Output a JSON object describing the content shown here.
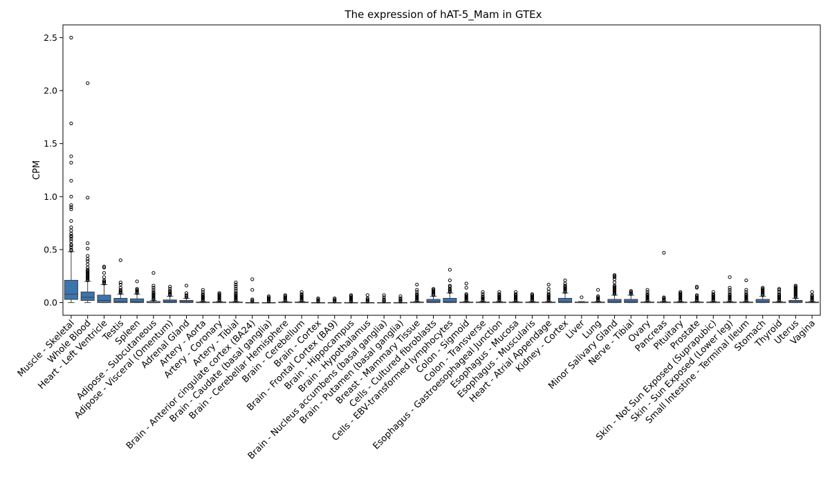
{
  "chart_data": {
    "type": "box",
    "title": "The expression of hAT-5_Mam in GTEx",
    "xlabel": "",
    "ylabel": "CPM",
    "ylim": [
      -0.12,
      2.62
    ],
    "yticks": [
      0.0,
      0.5,
      1.0,
      1.5,
      2.0,
      2.5
    ],
    "ytick_labels": [
      "0.0",
      "0.5",
      "1.0",
      "1.5",
      "2.0",
      "2.5"
    ],
    "grid": false,
    "color": "#3b75af",
    "categories": [
      {
        "name": "Muscle - Skeletal",
        "min": 0.0,
        "q1": 0.03,
        "median": 0.08,
        "q3": 0.21,
        "max": 0.48,
        "outliers": [
          0.49,
          0.5,
          0.52,
          0.54,
          0.55,
          0.58,
          0.6,
          0.62,
          0.63,
          0.65,
          0.68,
          0.71,
          0.77,
          0.88,
          0.9,
          0.92,
          1.0,
          1.15,
          1.32,
          1.38,
          1.69,
          2.5
        ]
      },
      {
        "name": "Whole Blood",
        "min": 0.0,
        "q1": 0.02,
        "median": 0.05,
        "q3": 0.1,
        "max": 0.2,
        "outliers": [
          0.21,
          0.22,
          0.23,
          0.24,
          0.25,
          0.26,
          0.27,
          0.28,
          0.29,
          0.3,
          0.31,
          0.33,
          0.36,
          0.39,
          0.41,
          0.44,
          0.51,
          0.56,
          0.99,
          2.07
        ]
      },
      {
        "name": "Heart - Left Ventricle",
        "min": 0.0,
        "q1": 0.0,
        "median": 0.02,
        "q3": 0.07,
        "max": 0.17,
        "outliers": [
          0.18,
          0.19,
          0.2,
          0.21,
          0.24,
          0.28,
          0.33,
          0.34
        ]
      },
      {
        "name": "Testis",
        "min": 0.0,
        "q1": 0.0,
        "median": 0.01,
        "q3": 0.04,
        "max": 0.08,
        "outliers": [
          0.09,
          0.1,
          0.11,
          0.12,
          0.14,
          0.17,
          0.19,
          0.4
        ]
      },
      {
        "name": "Spleen",
        "min": 0.0,
        "q1": 0.0,
        "median": 0.01,
        "q3": 0.035,
        "max": 0.08,
        "outliers": [
          0.09,
          0.1,
          0.11,
          0.12,
          0.13,
          0.2
        ]
      },
      {
        "name": "Adipose - Subcutaneous",
        "min": 0.0,
        "q1": 0.0,
        "median": 0.0,
        "q3": 0.01,
        "max": 0.02,
        "outliers": [
          0.03,
          0.04,
          0.05,
          0.06,
          0.07,
          0.08,
          0.09,
          0.1,
          0.12,
          0.14,
          0.16,
          0.28
        ]
      },
      {
        "name": "Adipose - Visceral (Omentum)",
        "min": 0.0,
        "q1": 0.0,
        "median": 0.01,
        "q3": 0.025,
        "max": 0.06,
        "outliers": [
          0.07,
          0.08,
          0.09,
          0.1,
          0.11,
          0.13,
          0.15
        ]
      },
      {
        "name": "Adrenal Gland",
        "min": 0.0,
        "q1": 0.0,
        "median": 0.01,
        "q3": 0.02,
        "max": 0.04,
        "outliers": [
          0.05,
          0.06,
          0.07,
          0.09,
          0.16
        ]
      },
      {
        "name": "Artery - Aorta",
        "min": 0.0,
        "q1": 0.0,
        "median": 0.0,
        "q3": 0.005,
        "max": 0.01,
        "outliers": [
          0.02,
          0.03,
          0.04,
          0.05,
          0.06,
          0.07,
          0.08,
          0.1,
          0.12
        ]
      },
      {
        "name": "Artery - Coronary",
        "min": 0.0,
        "q1": 0.0,
        "median": 0.0,
        "q3": 0.005,
        "max": 0.01,
        "outliers": [
          0.02,
          0.03,
          0.04,
          0.05,
          0.06,
          0.07,
          0.08,
          0.09
        ]
      },
      {
        "name": "Artery - Tibial",
        "min": 0.0,
        "q1": 0.0,
        "median": 0.0,
        "q3": 0.005,
        "max": 0.01,
        "outliers": [
          0.02,
          0.03,
          0.04,
          0.05,
          0.06,
          0.07,
          0.08,
          0.09,
          0.11,
          0.13,
          0.15,
          0.17,
          0.19
        ]
      },
      {
        "name": "Brain - Anterior cingulate cortex (BA24)",
        "min": 0.0,
        "q1": 0.0,
        "median": 0.0,
        "q3": 0.0,
        "max": 0.0,
        "outliers": [
          0.01,
          0.02,
          0.03,
          0.12,
          0.22
        ]
      },
      {
        "name": "Brain - Caudate (basal ganglia)",
        "min": 0.0,
        "q1": 0.0,
        "median": 0.0,
        "q3": 0.0,
        "max": 0.0,
        "outliers": [
          0.01,
          0.02,
          0.03,
          0.04,
          0.05,
          0.06
        ]
      },
      {
        "name": "Brain - Cerebellar Hemisphere",
        "min": 0.0,
        "q1": 0.0,
        "median": 0.0,
        "q3": 0.005,
        "max": 0.01,
        "outliers": [
          0.02,
          0.03,
          0.04,
          0.05,
          0.06,
          0.07
        ]
      },
      {
        "name": "Brain - Cerebellum",
        "min": 0.0,
        "q1": 0.0,
        "median": 0.0,
        "q3": 0.005,
        "max": 0.01,
        "outliers": [
          0.02,
          0.03,
          0.04,
          0.05,
          0.06,
          0.07,
          0.08,
          0.1
        ]
      },
      {
        "name": "Brain - Cortex",
        "min": 0.0,
        "q1": 0.0,
        "median": 0.0,
        "q3": 0.0,
        "max": 0.0,
        "outliers": [
          0.01,
          0.02,
          0.03,
          0.04
        ]
      },
      {
        "name": "Brain - Frontal Cortex (BA9)",
        "min": 0.0,
        "q1": 0.0,
        "median": 0.0,
        "q3": 0.0,
        "max": 0.0,
        "outliers": [
          0.01,
          0.02,
          0.03,
          0.04
        ]
      },
      {
        "name": "Brain - Hippocampus",
        "min": 0.0,
        "q1": 0.0,
        "median": 0.0,
        "q3": 0.0,
        "max": 0.0,
        "outliers": [
          0.01,
          0.02,
          0.03,
          0.04,
          0.05,
          0.06,
          0.07
        ]
      },
      {
        "name": "Brain - Hypothalamus",
        "min": 0.0,
        "q1": 0.0,
        "median": 0.0,
        "q3": 0.0,
        "max": 0.0,
        "outliers": [
          0.01,
          0.02,
          0.03,
          0.04,
          0.07
        ]
      },
      {
        "name": "Brain - Nucleus accumbens (basal ganglia)",
        "min": 0.0,
        "q1": 0.0,
        "median": 0.0,
        "q3": 0.0,
        "max": 0.0,
        "outliers": [
          0.01,
          0.02,
          0.03,
          0.05,
          0.07
        ]
      },
      {
        "name": "Brain - Putamen (basal ganglia)",
        "min": 0.0,
        "q1": 0.0,
        "median": 0.0,
        "q3": 0.0,
        "max": 0.0,
        "outliers": [
          0.01,
          0.02,
          0.03,
          0.04,
          0.06
        ]
      },
      {
        "name": "Breast - Mammary Tissue",
        "min": 0.0,
        "q1": 0.0,
        "median": 0.0,
        "q3": 0.005,
        "max": 0.01,
        "outliers": [
          0.02,
          0.03,
          0.04,
          0.05,
          0.06,
          0.07,
          0.08,
          0.1,
          0.12,
          0.17
        ]
      },
      {
        "name": "Cells - Cultured fibroblasts",
        "min": 0.0,
        "q1": 0.0,
        "median": 0.01,
        "q3": 0.03,
        "max": 0.06,
        "outliers": [
          0.07,
          0.08,
          0.09,
          0.1,
          0.11,
          0.12,
          0.13
        ]
      },
      {
        "name": "Cells - EBV-transformed lymphocytes",
        "min": 0.0,
        "q1": 0.0,
        "median": 0.01,
        "q3": 0.04,
        "max": 0.09,
        "outliers": [
          0.1,
          0.11,
          0.12,
          0.13,
          0.15,
          0.16,
          0.21,
          0.31
        ]
      },
      {
        "name": "Colon - Sigmoid",
        "min": 0.0,
        "q1": 0.0,
        "median": 0.0,
        "q3": 0.005,
        "max": 0.01,
        "outliers": [
          0.02,
          0.03,
          0.04,
          0.05,
          0.06,
          0.07,
          0.08,
          0.14,
          0.18
        ]
      },
      {
        "name": "Colon - Transverse",
        "min": 0.0,
        "q1": 0.0,
        "median": 0.0,
        "q3": 0.005,
        "max": 0.01,
        "outliers": [
          0.02,
          0.03,
          0.04,
          0.05,
          0.06,
          0.08,
          0.1
        ]
      },
      {
        "name": "Esophagus - Gastroesophageal Junction",
        "min": 0.0,
        "q1": 0.0,
        "median": 0.0,
        "q3": 0.005,
        "max": 0.01,
        "outliers": [
          0.02,
          0.03,
          0.04,
          0.05,
          0.06,
          0.07,
          0.08,
          0.1
        ]
      },
      {
        "name": "Esophagus - Mucosa",
        "min": 0.0,
        "q1": 0.0,
        "median": 0.0,
        "q3": 0.005,
        "max": 0.01,
        "outliers": [
          0.02,
          0.03,
          0.04,
          0.05,
          0.06,
          0.07,
          0.08,
          0.1
        ]
      },
      {
        "name": "Esophagus - Muscularis",
        "min": 0.0,
        "q1": 0.0,
        "median": 0.0,
        "q3": 0.005,
        "max": 0.01,
        "outliers": [
          0.02,
          0.03,
          0.04,
          0.05,
          0.06,
          0.07,
          0.08
        ]
      },
      {
        "name": "Heart - Atrial Appendage",
        "min": 0.0,
        "q1": 0.0,
        "median": 0.0,
        "q3": 0.005,
        "max": 0.01,
        "outliers": [
          0.02,
          0.03,
          0.04,
          0.05,
          0.06,
          0.07,
          0.08,
          0.1,
          0.13,
          0.17
        ]
      },
      {
        "name": "Kidney - Cortex",
        "min": 0.0,
        "q1": 0.0,
        "median": 0.01,
        "q3": 0.04,
        "max": 0.09,
        "outliers": [
          0.1,
          0.11,
          0.12,
          0.13,
          0.14,
          0.15,
          0.16,
          0.18,
          0.21
        ]
      },
      {
        "name": "Liver",
        "min": 0.0,
        "q1": 0.0,
        "median": 0.0,
        "q3": 0.005,
        "max": 0.01,
        "outliers": [
          0.05
        ]
      },
      {
        "name": "Lung",
        "min": 0.0,
        "q1": 0.0,
        "median": 0.0,
        "q3": 0.005,
        "max": 0.01,
        "outliers": [
          0.02,
          0.03,
          0.04,
          0.05,
          0.06,
          0.12
        ]
      },
      {
        "name": "Minor Salivary Gland",
        "min": 0.0,
        "q1": 0.0,
        "median": 0.01,
        "q3": 0.03,
        "max": 0.07,
        "outliers": [
          0.08,
          0.09,
          0.1,
          0.11,
          0.12,
          0.13,
          0.14,
          0.15,
          0.16,
          0.19,
          0.22,
          0.24,
          0.25,
          0.26
        ]
      },
      {
        "name": "Nerve - Tibial",
        "min": 0.0,
        "q1": 0.0,
        "median": 0.01,
        "q3": 0.03,
        "max": 0.07,
        "outliers": [
          0.08,
          0.09,
          0.1,
          0.11
        ]
      },
      {
        "name": "Ovary",
        "min": 0.0,
        "q1": 0.0,
        "median": 0.0,
        "q3": 0.005,
        "max": 0.01,
        "outliers": [
          0.02,
          0.03,
          0.04,
          0.05,
          0.06,
          0.07,
          0.08,
          0.1,
          0.12
        ]
      },
      {
        "name": "Pancreas",
        "min": 0.0,
        "q1": 0.0,
        "median": 0.0,
        "q3": 0.005,
        "max": 0.01,
        "outliers": [
          0.02,
          0.03,
          0.04,
          0.05,
          0.47
        ]
      },
      {
        "name": "Pituitary",
        "min": 0.0,
        "q1": 0.0,
        "median": 0.0,
        "q3": 0.005,
        "max": 0.01,
        "outliers": [
          0.02,
          0.03,
          0.04,
          0.05,
          0.06,
          0.07,
          0.08,
          0.09,
          0.1
        ]
      },
      {
        "name": "Prostate",
        "min": 0.0,
        "q1": 0.0,
        "median": 0.0,
        "q3": 0.005,
        "max": 0.01,
        "outliers": [
          0.02,
          0.03,
          0.04,
          0.05,
          0.06,
          0.07,
          0.14,
          0.15
        ]
      },
      {
        "name": "Skin - Not Sun Exposed (Suprapubic)",
        "min": 0.0,
        "q1": 0.0,
        "median": 0.0,
        "q3": 0.005,
        "max": 0.01,
        "outliers": [
          0.02,
          0.03,
          0.04,
          0.05,
          0.06,
          0.07,
          0.08,
          0.1
        ]
      },
      {
        "name": "Skin - Sun Exposed (Lower leg)",
        "min": 0.0,
        "q1": 0.0,
        "median": 0.0,
        "q3": 0.005,
        "max": 0.01,
        "outliers": [
          0.02,
          0.03,
          0.04,
          0.05,
          0.06,
          0.07,
          0.08,
          0.1,
          0.12,
          0.14,
          0.24
        ]
      },
      {
        "name": "Small Intestine - Terminal Ileum",
        "min": 0.0,
        "q1": 0.0,
        "median": 0.0,
        "q3": 0.005,
        "max": 0.01,
        "outliers": [
          0.02,
          0.03,
          0.04,
          0.05,
          0.06,
          0.07,
          0.08,
          0.1,
          0.12,
          0.21
        ]
      },
      {
        "name": "Stomach",
        "min": 0.0,
        "q1": 0.0,
        "median": 0.01,
        "q3": 0.03,
        "max": 0.06,
        "outliers": [
          0.07,
          0.08,
          0.09,
          0.1,
          0.11,
          0.12,
          0.13,
          0.14
        ]
      },
      {
        "name": "Thyroid",
        "min": 0.0,
        "q1": 0.0,
        "median": 0.0,
        "q3": 0.005,
        "max": 0.01,
        "outliers": [
          0.02,
          0.03,
          0.04,
          0.05,
          0.06,
          0.07,
          0.08,
          0.1,
          0.12,
          0.13
        ]
      },
      {
        "name": "Uterus",
        "min": 0.0,
        "q1": 0.0,
        "median": 0.01,
        "q3": 0.02,
        "max": 0.04,
        "outliers": [
          0.05,
          0.06,
          0.07,
          0.08,
          0.09,
          0.1,
          0.11,
          0.12,
          0.13,
          0.14,
          0.15,
          0.16
        ]
      },
      {
        "name": "Vagina",
        "min": 0.0,
        "q1": 0.0,
        "median": 0.0,
        "q3": 0.005,
        "max": 0.01,
        "outliers": [
          0.02,
          0.03,
          0.04,
          0.05,
          0.06,
          0.07,
          0.1
        ]
      }
    ]
  }
}
